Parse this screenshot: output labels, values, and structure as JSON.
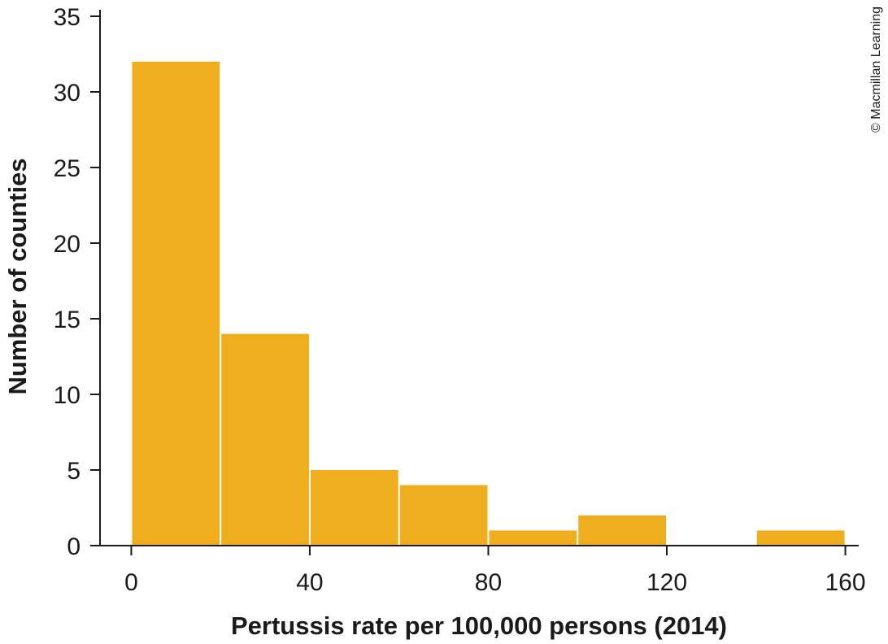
{
  "chart_data": {
    "type": "bar",
    "subtype": "histogram",
    "title": "",
    "xlabel": "Pertussis rate per 100,000 persons (2014)",
    "ylabel": "Number of counties",
    "bin_edges": [
      0,
      20,
      40,
      60,
      80,
      100,
      120,
      140,
      160
    ],
    "values": [
      32,
      14,
      5,
      4,
      1,
      2,
      0,
      1
    ],
    "xlim": [
      -7,
      163
    ],
    "ylim": [
      0,
      35
    ],
    "x_ticks": [
      0,
      40,
      80,
      120,
      160
    ],
    "y_ticks": [
      0,
      5,
      10,
      15,
      20,
      25,
      30,
      35
    ],
    "grid": false,
    "legend": "none",
    "bar_color": "#EFAE1E"
  },
  "credit": "© Macmillan Learning"
}
